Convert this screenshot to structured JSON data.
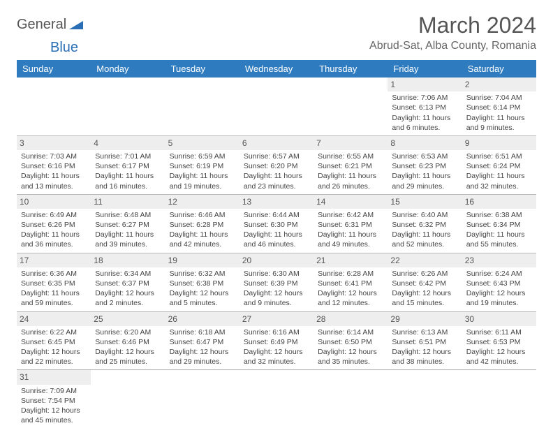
{
  "logo": {
    "general": "General",
    "blue": "Blue"
  },
  "title": "March 2024",
  "location": "Abrud-Sat, Alba County, Romania",
  "colors": {
    "header_bg": "#2e7bbf",
    "header_fg": "#ffffff",
    "daynum_bg": "#eeeeee",
    "border": "#b8b8b8",
    "logo_blue": "#2a6fb5"
  },
  "dayHeaders": [
    "Sunday",
    "Monday",
    "Tuesday",
    "Wednesday",
    "Thursday",
    "Friday",
    "Saturday"
  ],
  "weeks": [
    [
      null,
      null,
      null,
      null,
      null,
      {
        "n": "1",
        "sr": "Sunrise: 7:06 AM",
        "ss": "Sunset: 6:13 PM",
        "d1": "Daylight: 11 hours",
        "d2": "and 6 minutes."
      },
      {
        "n": "2",
        "sr": "Sunrise: 7:04 AM",
        "ss": "Sunset: 6:14 PM",
        "d1": "Daylight: 11 hours",
        "d2": "and 9 minutes."
      }
    ],
    [
      {
        "n": "3",
        "sr": "Sunrise: 7:03 AM",
        "ss": "Sunset: 6:16 PM",
        "d1": "Daylight: 11 hours",
        "d2": "and 13 minutes."
      },
      {
        "n": "4",
        "sr": "Sunrise: 7:01 AM",
        "ss": "Sunset: 6:17 PM",
        "d1": "Daylight: 11 hours",
        "d2": "and 16 minutes."
      },
      {
        "n": "5",
        "sr": "Sunrise: 6:59 AM",
        "ss": "Sunset: 6:19 PM",
        "d1": "Daylight: 11 hours",
        "d2": "and 19 minutes."
      },
      {
        "n": "6",
        "sr": "Sunrise: 6:57 AM",
        "ss": "Sunset: 6:20 PM",
        "d1": "Daylight: 11 hours",
        "d2": "and 23 minutes."
      },
      {
        "n": "7",
        "sr": "Sunrise: 6:55 AM",
        "ss": "Sunset: 6:21 PM",
        "d1": "Daylight: 11 hours",
        "d2": "and 26 minutes."
      },
      {
        "n": "8",
        "sr": "Sunrise: 6:53 AM",
        "ss": "Sunset: 6:23 PM",
        "d1": "Daylight: 11 hours",
        "d2": "and 29 minutes."
      },
      {
        "n": "9",
        "sr": "Sunrise: 6:51 AM",
        "ss": "Sunset: 6:24 PM",
        "d1": "Daylight: 11 hours",
        "d2": "and 32 minutes."
      }
    ],
    [
      {
        "n": "10",
        "sr": "Sunrise: 6:49 AM",
        "ss": "Sunset: 6:26 PM",
        "d1": "Daylight: 11 hours",
        "d2": "and 36 minutes."
      },
      {
        "n": "11",
        "sr": "Sunrise: 6:48 AM",
        "ss": "Sunset: 6:27 PM",
        "d1": "Daylight: 11 hours",
        "d2": "and 39 minutes."
      },
      {
        "n": "12",
        "sr": "Sunrise: 6:46 AM",
        "ss": "Sunset: 6:28 PM",
        "d1": "Daylight: 11 hours",
        "d2": "and 42 minutes."
      },
      {
        "n": "13",
        "sr": "Sunrise: 6:44 AM",
        "ss": "Sunset: 6:30 PM",
        "d1": "Daylight: 11 hours",
        "d2": "and 46 minutes."
      },
      {
        "n": "14",
        "sr": "Sunrise: 6:42 AM",
        "ss": "Sunset: 6:31 PM",
        "d1": "Daylight: 11 hours",
        "d2": "and 49 minutes."
      },
      {
        "n": "15",
        "sr": "Sunrise: 6:40 AM",
        "ss": "Sunset: 6:32 PM",
        "d1": "Daylight: 11 hours",
        "d2": "and 52 minutes."
      },
      {
        "n": "16",
        "sr": "Sunrise: 6:38 AM",
        "ss": "Sunset: 6:34 PM",
        "d1": "Daylight: 11 hours",
        "d2": "and 55 minutes."
      }
    ],
    [
      {
        "n": "17",
        "sr": "Sunrise: 6:36 AM",
        "ss": "Sunset: 6:35 PM",
        "d1": "Daylight: 11 hours",
        "d2": "and 59 minutes."
      },
      {
        "n": "18",
        "sr": "Sunrise: 6:34 AM",
        "ss": "Sunset: 6:37 PM",
        "d1": "Daylight: 12 hours",
        "d2": "and 2 minutes."
      },
      {
        "n": "19",
        "sr": "Sunrise: 6:32 AM",
        "ss": "Sunset: 6:38 PM",
        "d1": "Daylight: 12 hours",
        "d2": "and 5 minutes."
      },
      {
        "n": "20",
        "sr": "Sunrise: 6:30 AM",
        "ss": "Sunset: 6:39 PM",
        "d1": "Daylight: 12 hours",
        "d2": "and 9 minutes."
      },
      {
        "n": "21",
        "sr": "Sunrise: 6:28 AM",
        "ss": "Sunset: 6:41 PM",
        "d1": "Daylight: 12 hours",
        "d2": "and 12 minutes."
      },
      {
        "n": "22",
        "sr": "Sunrise: 6:26 AM",
        "ss": "Sunset: 6:42 PM",
        "d1": "Daylight: 12 hours",
        "d2": "and 15 minutes."
      },
      {
        "n": "23",
        "sr": "Sunrise: 6:24 AM",
        "ss": "Sunset: 6:43 PM",
        "d1": "Daylight: 12 hours",
        "d2": "and 19 minutes."
      }
    ],
    [
      {
        "n": "24",
        "sr": "Sunrise: 6:22 AM",
        "ss": "Sunset: 6:45 PM",
        "d1": "Daylight: 12 hours",
        "d2": "and 22 minutes."
      },
      {
        "n": "25",
        "sr": "Sunrise: 6:20 AM",
        "ss": "Sunset: 6:46 PM",
        "d1": "Daylight: 12 hours",
        "d2": "and 25 minutes."
      },
      {
        "n": "26",
        "sr": "Sunrise: 6:18 AM",
        "ss": "Sunset: 6:47 PM",
        "d1": "Daylight: 12 hours",
        "d2": "and 29 minutes."
      },
      {
        "n": "27",
        "sr": "Sunrise: 6:16 AM",
        "ss": "Sunset: 6:49 PM",
        "d1": "Daylight: 12 hours",
        "d2": "and 32 minutes."
      },
      {
        "n": "28",
        "sr": "Sunrise: 6:14 AM",
        "ss": "Sunset: 6:50 PM",
        "d1": "Daylight: 12 hours",
        "d2": "and 35 minutes."
      },
      {
        "n": "29",
        "sr": "Sunrise: 6:13 AM",
        "ss": "Sunset: 6:51 PM",
        "d1": "Daylight: 12 hours",
        "d2": "and 38 minutes."
      },
      {
        "n": "30",
        "sr": "Sunrise: 6:11 AM",
        "ss": "Sunset: 6:53 PM",
        "d1": "Daylight: 12 hours",
        "d2": "and 42 minutes."
      }
    ],
    [
      {
        "n": "31",
        "sr": "Sunrise: 7:09 AM",
        "ss": "Sunset: 7:54 PM",
        "d1": "Daylight: 12 hours",
        "d2": "and 45 minutes."
      },
      null,
      null,
      null,
      null,
      null,
      null
    ]
  ]
}
